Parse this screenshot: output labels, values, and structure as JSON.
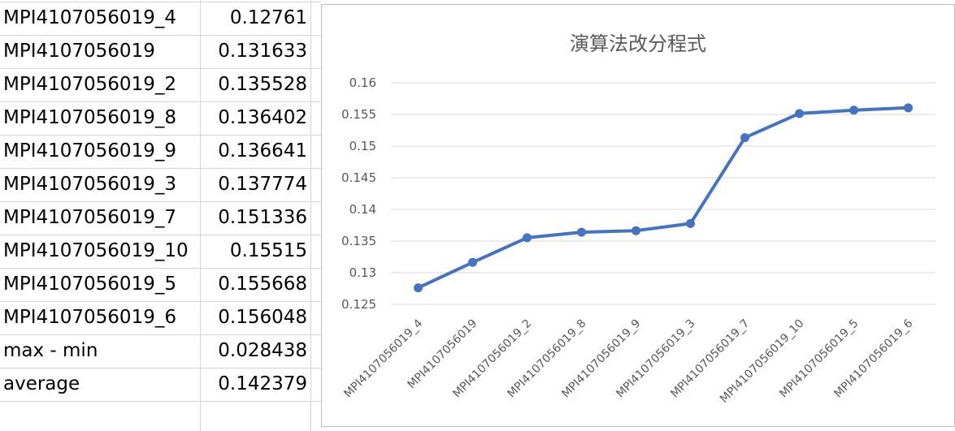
{
  "table": {
    "rows": [
      {
        "name": "MPI4107056019_4",
        "value": "0.12761"
      },
      {
        "name": "MPI4107056019",
        "value": "0.131633"
      },
      {
        "name": "MPI4107056019_2",
        "value": "0.135528"
      },
      {
        "name": "MPI4107056019_8",
        "value": "0.136402"
      },
      {
        "name": "MPI4107056019_9",
        "value": "0.136641"
      },
      {
        "name": "MPI4107056019_3",
        "value": "0.137774"
      },
      {
        "name": "MPI4107056019_7",
        "value": "0.151336"
      },
      {
        "name": "MPI4107056019_10",
        "value": "0.15515"
      },
      {
        "name": "MPI4107056019_5",
        "value": "0.155668"
      },
      {
        "name": "MPI4107056019_6",
        "value": "0.156048"
      },
      {
        "name": "max - min",
        "value": "0.028438"
      },
      {
        "name": "average",
        "value": "0.142379"
      }
    ]
  },
  "chart_data": {
    "type": "line",
    "title": "演算法改分程式",
    "categories": [
      "MPI4107056019_4",
      "MPI4107056019",
      "MPI4107056019_2",
      "MPI4107056019_8",
      "MPI4107056019_9",
      "MPI4107056019_3",
      "MPI4107056019_7",
      "MPI4107056019_10",
      "MPI4107056019_5",
      "MPI4107056019_6"
    ],
    "series": [
      {
        "values": [
          0.12761,
          0.131633,
          0.135528,
          0.136402,
          0.136641,
          0.137774,
          0.151336,
          0.15515,
          0.155668,
          0.156048
        ]
      }
    ],
    "ylim": [
      0.125,
      0.16
    ],
    "yticks": [
      "0.125",
      "0.13",
      "0.135",
      "0.14",
      "0.145",
      "0.15",
      "0.155",
      "0.16"
    ],
    "grid": true,
    "legend": "none",
    "color": "#4472c4"
  }
}
